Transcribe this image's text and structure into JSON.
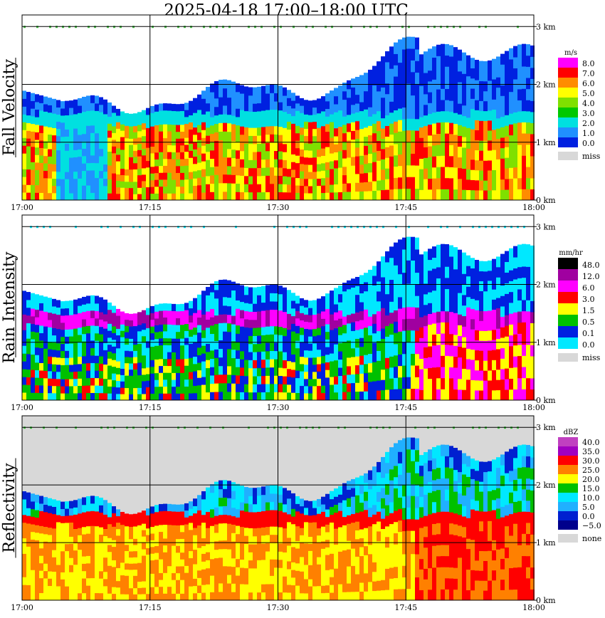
{
  "title": "2025-04-18   17:00–18:00 UTC",
  "chart_data": {
    "type": "heatmap",
    "time_ticks": [
      "17:00",
      "17:15",
      "17:30",
      "17:45",
      "18:00"
    ],
    "height_ticks": [
      "0 km",
      "1 km",
      "2 km",
      "3 km"
    ],
    "ylim": [
      0,
      3.2
    ],
    "panels": [
      {
        "title": "Fall Velocity",
        "unit": "m/s",
        "legend": [
          {
            "label": "8.0",
            "color": "#ff00ff"
          },
          {
            "label": "7.0",
            "color": "#ff0000"
          },
          {
            "label": "6.0",
            "color": "#ff8c00"
          },
          {
            "label": "5.0",
            "color": "#ffff00"
          },
          {
            "label": "4.0",
            "color": "#7fe000"
          },
          {
            "label": "3.0",
            "color": "#00c800"
          },
          {
            "label": "2.0",
            "color": "#00e0e0"
          },
          {
            "label": "1.0",
            "color": "#2090ff"
          },
          {
            "label": "0.0",
            "color": "#0020e0"
          }
        ],
        "missing_label": "miss",
        "missing_color": "#d8d8d8"
      },
      {
        "title": "Rain Intensity",
        "unit": "mm/hr",
        "legend": [
          {
            "label": "48.0",
            "color": "#000000"
          },
          {
            "label": "12.0",
            "color": "#a000a0"
          },
          {
            "label": "6.0",
            "color": "#ff00ff"
          },
          {
            "label": "3.0",
            "color": "#ff0000"
          },
          {
            "label": "1.5",
            "color": "#ffff00"
          },
          {
            "label": "0.5",
            "color": "#00c000"
          },
          {
            "label": "0.1",
            "color": "#0020e0"
          },
          {
            "label": "0.0",
            "color": "#00e8ff"
          }
        ],
        "missing_label": "miss",
        "missing_color": "#d8d8d8"
      },
      {
        "title": "Reflectivity",
        "unit": "dBZ",
        "legend": [
          {
            "label": "40.0",
            "color": "#c040c0"
          },
          {
            "label": "35.0",
            "color": "#a000c0"
          },
          {
            "label": "30.0",
            "color": "#ff0000"
          },
          {
            "label": "25.0",
            "color": "#ff8000"
          },
          {
            "label": "20.0",
            "color": "#ffff00"
          },
          {
            "label": "15.0",
            "color": "#00c000"
          },
          {
            "label": "10.0",
            "color": "#00e8ff"
          },
          {
            "label": "5.0",
            "color": "#20b0ff"
          },
          {
            "label": "0.0",
            "color": "#0020d0"
          },
          {
            "label": "−5.0",
            "color": "#00008c"
          }
        ],
        "missing_label": "none",
        "missing_color": "#d8d8d8"
      }
    ]
  }
}
